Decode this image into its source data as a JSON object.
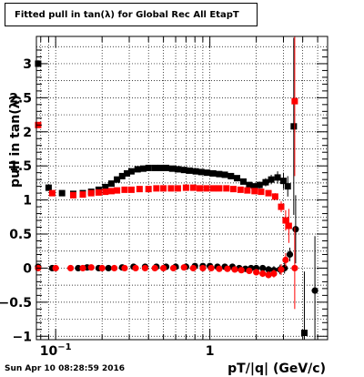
{
  "title": "Fitted pull in tan(λ) for Global Rec All EtapT",
  "footer": "Sun Apr 10 08:28:59 2016",
  "chart_data": {
    "type": "scatter",
    "title": "Fitted pull in tan(λ) for Global Rec All EtapT",
    "xlabel": "pT/|q| (GeV/c)",
    "ylabel": "pull in tan(λ)",
    "xscale": "log",
    "xlim": [
      0.075,
      5.8
    ],
    "ylim": [
      -1.05,
      3.4
    ],
    "x_ticks": [
      {
        "v": 0.1,
        "label": "10",
        "sup": "−1"
      },
      {
        "v": 1,
        "label": "1",
        "sup": ""
      }
    ],
    "y_ticks": [
      -1,
      -0.5,
      0,
      0.5,
      1,
      1.5,
      2,
      2.5,
      3
    ],
    "grid": true,
    "series": [
      {
        "color": "#000000",
        "marker": "square",
        "stat": "sigma",
        "points": [
          [
            0.077,
            3.0
          ],
          [
            0.09,
            1.18
          ],
          [
            0.11,
            1.1
          ],
          [
            0.13,
            1.09
          ],
          [
            0.15,
            1.1
          ],
          [
            0.17,
            1.12
          ],
          [
            0.19,
            1.15
          ],
          [
            0.21,
            1.19
          ],
          [
            0.23,
            1.24
          ],
          [
            0.25,
            1.3
          ],
          [
            0.27,
            1.35
          ],
          [
            0.29,
            1.39
          ],
          [
            0.31,
            1.42
          ],
          [
            0.34,
            1.45
          ],
          [
            0.37,
            1.46
          ],
          [
            0.4,
            1.47
          ],
          [
            0.44,
            1.47
          ],
          [
            0.48,
            1.47
          ],
          [
            0.52,
            1.47
          ],
          [
            0.57,
            1.46
          ],
          [
            0.62,
            1.45
          ],
          [
            0.68,
            1.44
          ],
          [
            0.74,
            1.43
          ],
          [
            0.81,
            1.42
          ],
          [
            0.88,
            1.41
          ],
          [
            0.96,
            1.4
          ],
          [
            1.05,
            1.39
          ],
          [
            1.15,
            1.38
          ],
          [
            1.25,
            1.37
          ],
          [
            1.37,
            1.35
          ],
          [
            1.5,
            1.32
          ],
          [
            1.65,
            1.27
          ],
          [
            1.8,
            1.22
          ],
          [
            1.95,
            1.2
          ],
          [
            2.1,
            1.22
          ],
          [
            2.3,
            1.26
          ],
          [
            2.5,
            1.3
          ],
          [
            2.75,
            1.33
          ],
          [
            3.0,
            1.28
          ],
          [
            3.2,
            1.2
          ],
          [
            3.5,
            2.08
          ],
          [
            4.1,
            -0.95
          ]
        ],
        "errors": [
          0.05,
          0.03,
          0.02,
          0.02,
          0.02,
          0.02,
          0.02,
          0.02,
          0.02,
          0.02,
          0.02,
          0.02,
          0.02,
          0.02,
          0.02,
          0.02,
          0.02,
          0.02,
          0.02,
          0.02,
          0.02,
          0.02,
          0.02,
          0.02,
          0.02,
          0.02,
          0.02,
          0.02,
          0.02,
          0.02,
          0.02,
          0.03,
          0.03,
          0.04,
          0.05,
          0.06,
          0.07,
          0.09,
          0.12,
          0.15,
          1.3,
          0.9
        ]
      },
      {
        "color": "#000000",
        "marker": "circle",
        "stat": "mean",
        "points": [
          [
            0.077,
            0.02
          ],
          [
            0.095,
            0.0
          ],
          [
            0.14,
            0.0
          ],
          [
            0.16,
            0.01
          ],
          [
            0.19,
            0.0
          ],
          [
            0.22,
            0.0
          ],
          [
            0.27,
            0.01
          ],
          [
            0.32,
            0.02
          ],
          [
            0.38,
            0.02
          ],
          [
            0.45,
            0.02
          ],
          [
            0.52,
            0.02
          ],
          [
            0.6,
            0.02
          ],
          [
            0.7,
            0.02
          ],
          [
            0.8,
            0.03
          ],
          [
            0.9,
            0.03
          ],
          [
            1.0,
            0.03
          ],
          [
            1.12,
            0.02
          ],
          [
            1.25,
            0.02
          ],
          [
            1.4,
            0.02
          ],
          [
            1.55,
            0.0
          ],
          [
            1.7,
            -0.01
          ],
          [
            1.85,
            0.0
          ],
          [
            2.0,
            0.0
          ],
          [
            2.2,
            0.0
          ],
          [
            2.4,
            -0.02
          ],
          [
            2.6,
            -0.03
          ],
          [
            2.85,
            -0.02
          ],
          [
            3.05,
            0.0
          ],
          [
            3.3,
            0.2
          ],
          [
            3.6,
            0.57
          ],
          [
            4.8,
            -0.33
          ]
        ],
        "errors": [
          0.03,
          0.02,
          0.02,
          0.02,
          0.02,
          0.02,
          0.02,
          0.02,
          0.02,
          0.02,
          0.02,
          0.02,
          0.02,
          0.02,
          0.02,
          0.02,
          0.02,
          0.02,
          0.02,
          0.02,
          0.02,
          0.03,
          0.03,
          0.04,
          0.05,
          0.06,
          0.07,
          0.08,
          0.1,
          0.5,
          0.8
        ]
      },
      {
        "color": "#ff0000",
        "marker": "square",
        "stat": "sigma",
        "points": [
          [
            0.077,
            2.1
          ],
          [
            0.095,
            1.1
          ],
          [
            0.13,
            1.07
          ],
          [
            0.15,
            1.08
          ],
          [
            0.17,
            1.1
          ],
          [
            0.19,
            1.11
          ],
          [
            0.21,
            1.12
          ],
          [
            0.23,
            1.13
          ],
          [
            0.25,
            1.14
          ],
          [
            0.28,
            1.15
          ],
          [
            0.31,
            1.15
          ],
          [
            0.35,
            1.16
          ],
          [
            0.4,
            1.16
          ],
          [
            0.45,
            1.17
          ],
          [
            0.5,
            1.17
          ],
          [
            0.56,
            1.17
          ],
          [
            0.62,
            1.17
          ],
          [
            0.7,
            1.18
          ],
          [
            0.78,
            1.18
          ],
          [
            0.86,
            1.17
          ],
          [
            0.95,
            1.17
          ],
          [
            1.05,
            1.17
          ],
          [
            1.15,
            1.17
          ],
          [
            1.28,
            1.17
          ],
          [
            1.42,
            1.16
          ],
          [
            1.58,
            1.15
          ],
          [
            1.75,
            1.14
          ],
          [
            1.95,
            1.13
          ],
          [
            2.15,
            1.12
          ],
          [
            2.4,
            1.1
          ],
          [
            2.65,
            1.05
          ],
          [
            2.9,
            0.9
          ],
          [
            3.1,
            0.7
          ],
          [
            3.25,
            0.62
          ],
          [
            3.55,
            2.45
          ]
        ],
        "errors": [
          0.04,
          0.02,
          0.02,
          0.02,
          0.02,
          0.02,
          0.02,
          0.02,
          0.02,
          0.02,
          0.02,
          0.02,
          0.02,
          0.02,
          0.02,
          0.02,
          0.02,
          0.02,
          0.02,
          0.02,
          0.02,
          0.02,
          0.02,
          0.02,
          0.02,
          0.02,
          0.02,
          0.03,
          0.03,
          0.04,
          0.05,
          0.08,
          0.15,
          0.25,
          1.1
        ]
      },
      {
        "color": "#ff0000",
        "marker": "circle",
        "stat": "mean",
        "points": [
          [
            0.077,
            0.0
          ],
          [
            0.1,
            0.0
          ],
          [
            0.125,
            0.0
          ],
          [
            0.15,
            0.0
          ],
          [
            0.17,
            0.01
          ],
          [
            0.2,
            0.0
          ],
          [
            0.24,
            0.0
          ],
          [
            0.28,
            0.0
          ],
          [
            0.33,
            0.0
          ],
          [
            0.38,
            0.0
          ],
          [
            0.44,
            0.0
          ],
          [
            0.5,
            0.0
          ],
          [
            0.58,
            0.0
          ],
          [
            0.68,
            0.01
          ],
          [
            0.78,
            0.0
          ],
          [
            0.9,
            0.0
          ],
          [
            1.02,
            0.0
          ],
          [
            1.15,
            -0.01
          ],
          [
            1.3,
            -0.01
          ],
          [
            1.45,
            -0.02
          ],
          [
            1.6,
            -0.03
          ],
          [
            1.8,
            -0.04
          ],
          [
            2.0,
            -0.06
          ],
          [
            2.2,
            -0.08
          ],
          [
            2.4,
            -0.1
          ],
          [
            2.6,
            -0.08
          ],
          [
            2.9,
            -0.02
          ],
          [
            3.1,
            0.12
          ],
          [
            3.55,
            0.0
          ]
        ],
        "errors": [
          0.02,
          0.02,
          0.02,
          0.02,
          0.02,
          0.02,
          0.02,
          0.02,
          0.02,
          0.02,
          0.02,
          0.02,
          0.02,
          0.02,
          0.02,
          0.02,
          0.02,
          0.02,
          0.02,
          0.02,
          0.03,
          0.03,
          0.04,
          0.05,
          0.05,
          0.06,
          0.08,
          0.1,
          0.6
        ]
      }
    ]
  }
}
